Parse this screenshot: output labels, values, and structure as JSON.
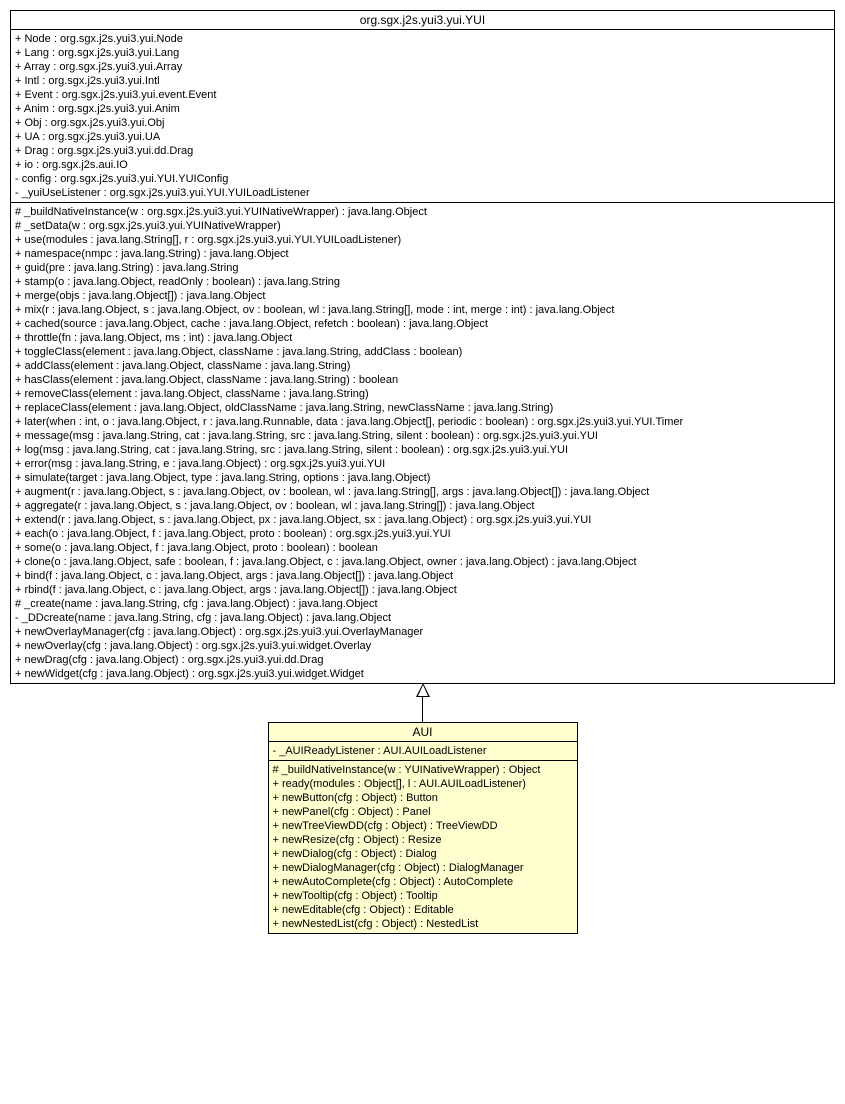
{
  "parent": {
    "title": "org.sgx.j2s.yui3.yui.YUI",
    "bg": "#ffffff",
    "fields": [
      "+ Node : org.sgx.j2s.yui3.yui.Node",
      "+ Lang : org.sgx.j2s.yui3.yui.Lang",
      "+ Array : org.sgx.j2s.yui3.yui.Array",
      "+ Intl : org.sgx.j2s.yui3.yui.Intl",
      "+ Event : org.sgx.j2s.yui3.yui.event.Event",
      "+ Anim : org.sgx.j2s.yui3.yui.Anim",
      "+ Obj : org.sgx.j2s.yui3.yui.Obj",
      "+ UA : org.sgx.j2s.yui3.yui.UA",
      "+ Drag : org.sgx.j2s.yui3.yui.dd.Drag",
      "+ io : org.sgx.j2s.aui.IO",
      "- config : org.sgx.j2s.yui3.yui.YUI.YUIConfig",
      "- _yuiUseListener : org.sgx.j2s.yui3.yui.YUI.YUILoadListener"
    ],
    "methods": [
      "# _buildNativeInstance(w : org.sgx.j2s.yui3.yui.YUINativeWrapper) : java.lang.Object",
      "# _setData(w : org.sgx.j2s.yui3.yui.YUINativeWrapper)",
      "+ use(modules : java.lang.String[], r : org.sgx.j2s.yui3.yui.YUI.YUILoadListener)",
      "+ namespace(nmpc : java.lang.String) : java.lang.Object",
      "+ guid(pre : java.lang.String) : java.lang.String",
      "+ stamp(o : java.lang.Object, readOnly : boolean) : java.lang.String",
      "+ merge(objs : java.lang.Object[]) : java.lang.Object",
      "+ mix(r : java.lang.Object, s : java.lang.Object, ov : boolean, wl : java.lang.String[], mode : int, merge : int) : java.lang.Object",
      "+ cached(source : java.lang.Object, cache : java.lang.Object, refetch : boolean) : java.lang.Object",
      "+ throttle(fn : java.lang.Object, ms : int) : java.lang.Object",
      "+ toggleClass(element : java.lang.Object, className : java.lang.String, addClass : boolean)",
      "+ addClass(element : java.lang.Object, className : java.lang.String)",
      "+ hasClass(element : java.lang.Object, className : java.lang.String) : boolean",
      "+ removeClass(element : java.lang.Object, className : java.lang.String)",
      "+ replaceClass(element : java.lang.Object, oldClassName : java.lang.String, newClassName : java.lang.String)",
      "+ later(when : int, o : java.lang.Object, r : java.lang.Runnable, data : java.lang.Object[], periodic : boolean) : org.sgx.j2s.yui3.yui.YUI.Timer",
      "+ message(msg : java.lang.String, cat : java.lang.String, src : java.lang.String, silent : boolean) : org.sgx.j2s.yui3.yui.YUI",
      "+ log(msg : java.lang.String, cat : java.lang.String, src : java.lang.String, silent : boolean) : org.sgx.j2s.yui3.yui.YUI",
      "+ error(msg : java.lang.String, e : java.lang.Object) : org.sgx.j2s.yui3.yui.YUI",
      "+ simulate(target : java.lang.Object, type : java.lang.String, options : java.lang.Object)",
      "+ augment(r : java.lang.Object, s : java.lang.Object, ov : boolean, wl : java.lang.String[], args : java.lang.Object[]) : java.lang.Object",
      "+ aggregate(r : java.lang.Object, s : java.lang.Object, ov : boolean, wl : java.lang.String[]) : java.lang.Object",
      "+ extend(r : java.lang.Object, s : java.lang.Object, px : java.lang.Object, sx : java.lang.Object) : org.sgx.j2s.yui3.yui.YUI",
      "+ each(o : java.lang.Object, f : java.lang.Object, proto : boolean) : org.sgx.j2s.yui3.yui.YUI",
      "+ some(o : java.lang.Object, f : java.lang.Object, proto : boolean) : boolean",
      "+ clone(o : java.lang.Object, safe : boolean, f : java.lang.Object, c : java.lang.Object, owner : java.lang.Object) : java.lang.Object",
      "+ bind(f : java.lang.Object, c : java.lang.Object, args : java.lang.Object[]) : java.lang.Object",
      "+ rbind(f : java.lang.Object, c : java.lang.Object, args : java.lang.Object[]) : java.lang.Object",
      "# _create(name : java.lang.String, cfg : java.lang.Object) : java.lang.Object",
      "- _DDcreate(name : java.lang.String, cfg : java.lang.Object) : java.lang.Object",
      "+ newOverlayManager(cfg : java.lang.Object) : org.sgx.j2s.yui3.yui.OverlayManager",
      "+ newOverlay(cfg : java.lang.Object) : org.sgx.j2s.yui3.yui.widget.Overlay",
      "+ newDrag(cfg : java.lang.Object) : org.sgx.j2s.yui3.yui.dd.Drag",
      "+ newWidget(cfg : java.lang.Object) : org.sgx.j2s.yui3.yui.widget.Widget"
    ]
  },
  "child": {
    "title": "AUI",
    "bg": "#fefece",
    "fields": [
      "- _AUIReadyListener : AUI.AUILoadListener"
    ],
    "methods": [
      "# _buildNativeInstance(w : YUINativeWrapper) : Object",
      "+ ready(modules : Object[], l : AUI.AUILoadListener)",
      "+ newButton(cfg : Object) : Button",
      "+ newPanel(cfg : Object) : Panel",
      "+ newTreeViewDD(cfg : Object) : TreeViewDD",
      "+ newResize(cfg : Object) : Resize",
      "+ newDialog(cfg : Object) : Dialog",
      "+ newDialogManager(cfg : Object) : DialogManager",
      "+ newAutoComplete(cfg : Object) : AutoComplete",
      "+ newTooltip(cfg : Object) : Tooltip",
      "+ newEditable(cfg : Object) : Editable",
      "+ newNestedList(cfg : Object) : NestedList"
    ]
  }
}
